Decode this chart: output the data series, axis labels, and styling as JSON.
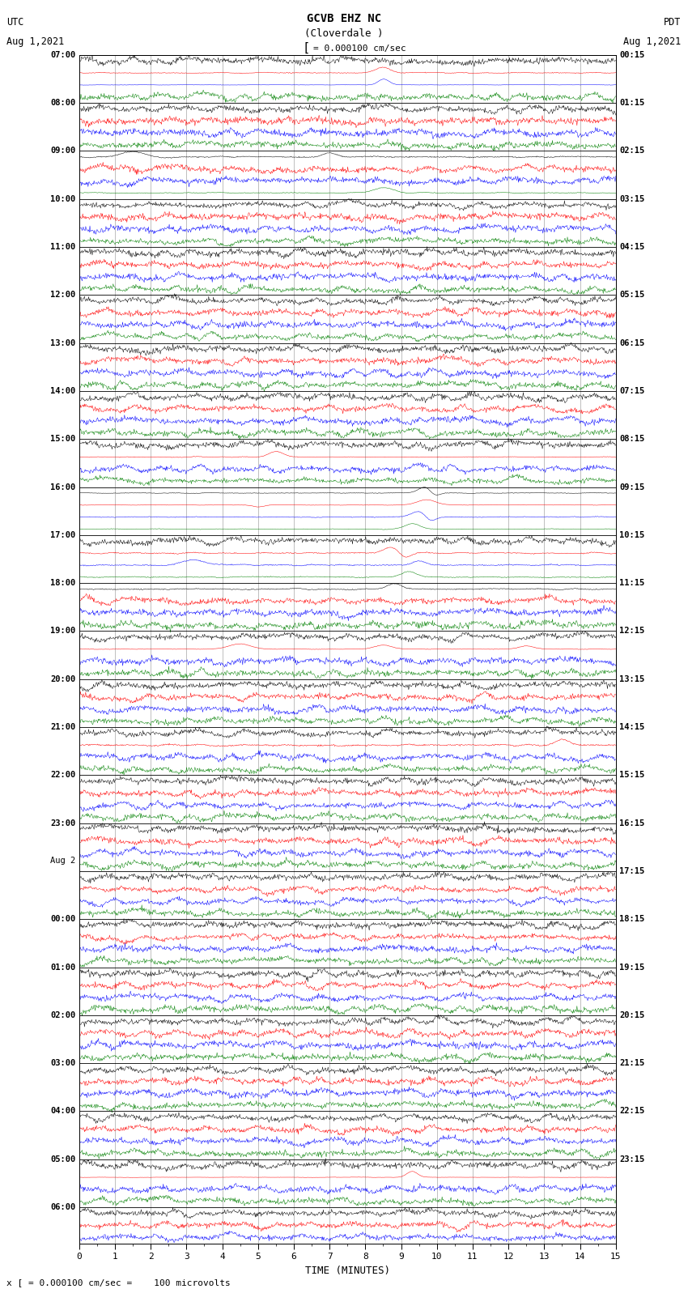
{
  "title_line1": "GCVB EHZ NC",
  "title_line2": "(Cloverdale )",
  "scale_label": "= 0.000100 cm/sec",
  "left_label_line1": "UTC",
  "left_label_line2": "Aug 1,2021",
  "right_label_line1": "PDT",
  "right_label_line2": "Aug 1,2021",
  "bottom_label": "x [ = 0.000100 cm/sec =    100 microvolts",
  "xlabel": "TIME (MINUTES)",
  "bg_color": "#ffffff",
  "trace_colors": [
    "black",
    "red",
    "blue",
    "green"
  ],
  "xmin": 0,
  "xmax": 15,
  "utc_labels": [
    "07:00",
    "08:00",
    "09:00",
    "10:00",
    "11:00",
    "12:00",
    "13:00",
    "14:00",
    "15:00",
    "16:00",
    "17:00",
    "18:00",
    "19:00",
    "20:00",
    "21:00",
    "22:00",
    "23:00",
    "Aug 2",
    "00:00",
    "01:00",
    "02:00",
    "03:00",
    "04:00",
    "05:00",
    "06:00"
  ],
  "pdt_labels": [
    "00:15",
    "01:15",
    "02:15",
    "03:15",
    "04:15",
    "05:15",
    "06:15",
    "07:15",
    "08:15",
    "09:15",
    "10:15",
    "11:15",
    "12:15",
    "13:15",
    "14:15",
    "15:15",
    "16:15",
    "17:15",
    "18:15",
    "19:15",
    "20:15",
    "21:15",
    "22:15",
    "23:15"
  ],
  "noise_levels": [
    0.25,
    0.25,
    0.25,
    0.25,
    0.2,
    0.2,
    0.2,
    0.2,
    0.3,
    0.3,
    0.3,
    0.3,
    0.22,
    0.22,
    0.22,
    0.22,
    0.2,
    0.2,
    0.2,
    0.2,
    0.25,
    0.25,
    0.25,
    0.25,
    0.22,
    0.22,
    0.22,
    0.22,
    0.35,
    0.35,
    0.35,
    0.35,
    0.3,
    0.3,
    0.3,
    0.3,
    0.45,
    0.45,
    0.45,
    0.45,
    0.5,
    0.5,
    0.5,
    0.5,
    0.55,
    0.55,
    0.55,
    0.55,
    0.4,
    0.4,
    0.4,
    0.4,
    0.45,
    0.45,
    0.45,
    0.45,
    0.6,
    0.6,
    0.6,
    0.6,
    0.65,
    0.65,
    0.65,
    0.65,
    0.7,
    0.7,
    0.7,
    0.7,
    0.75,
    0.75,
    0.75,
    0.75,
    0.8,
    0.8,
    0.8,
    0.8,
    0.85,
    0.85,
    0.85,
    0.85,
    0.8,
    0.8,
    0.8,
    0.8,
    0.5,
    0.5,
    0.5,
    0.5,
    0.3,
    0.3,
    0.3,
    0.3,
    0.25,
    0.25,
    0.25,
    0.25,
    0.2,
    0.2,
    0.2
  ]
}
